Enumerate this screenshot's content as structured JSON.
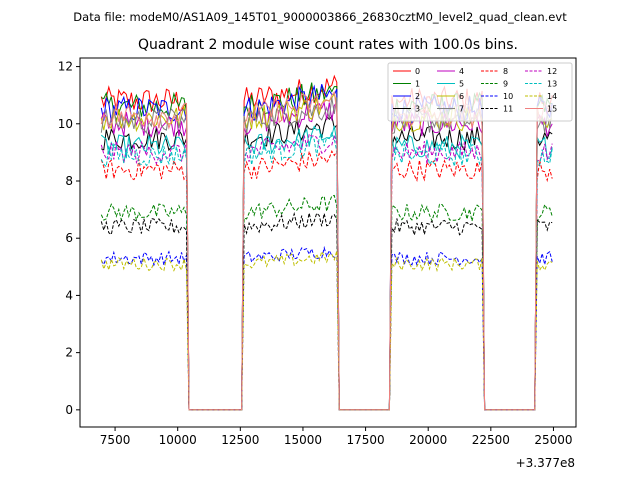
{
  "suptitle": "Data file: modeM0/AS1A09_145T01_9000003866_26830cztM0_level2_quad_clean.evt",
  "chart_data": {
    "type": "line",
    "title": "Quadrant 2 module wise count rates with 100.0s bins.",
    "xlabel": "",
    "ylabel": "",
    "x_offset_label": "+3.377e8",
    "xlim": [
      6100,
      25900
    ],
    "ylim": [
      -0.6,
      12.3
    ],
    "xticks": [
      7500,
      10000,
      12500,
      15000,
      17500,
      20000,
      22500,
      25000
    ],
    "yticks": [
      0,
      2,
      4,
      6,
      8,
      10,
      12
    ],
    "bin_width_s": 100,
    "on_segments": [
      [
        6950,
        10350
      ],
      [
        12650,
        16350
      ],
      [
        18550,
        22150
      ],
      [
        24350,
        25000
      ]
    ],
    "series": [
      {
        "name": "0",
        "color": "#ff0000",
        "dash": "solid",
        "level": 10.8
      },
      {
        "name": "1",
        "color": "#008000",
        "dash": "solid",
        "level": 10.6
      },
      {
        "name": "2",
        "color": "#0000ff",
        "dash": "solid",
        "level": 10.5
      },
      {
        "name": "3",
        "color": "#000000",
        "dash": "solid",
        "level": 9.5
      },
      {
        "name": "4",
        "color": "#bf00bf",
        "dash": "solid",
        "level": 10.0
      },
      {
        "name": "5",
        "color": "#00bfbf",
        "dash": "solid",
        "level": 9.2
      },
      {
        "name": "6",
        "color": "#bfbf00",
        "dash": "solid",
        "level": 10.2
      },
      {
        "name": "7",
        "color": "#808080",
        "dash": "solid",
        "level": 10.1
      },
      {
        "name": "8",
        "color": "#ff0000",
        "dash": "dashed",
        "level": 8.4
      },
      {
        "name": "9",
        "color": "#008000",
        "dash": "dashed",
        "level": 6.9
      },
      {
        "name": "10",
        "color": "#0000ff",
        "dash": "dashed",
        "level": 5.3
      },
      {
        "name": "11",
        "color": "#000000",
        "dash": "dashed",
        "level": 6.4
      },
      {
        "name": "12",
        "color": "#bf00bf",
        "dash": "dashed",
        "level": 9.0
      },
      {
        "name": "13",
        "color": "#00bfbf",
        "dash": "dashed",
        "level": 8.9
      },
      {
        "name": "14",
        "color": "#bfbf00",
        "dash": "dashed",
        "level": 5.1
      },
      {
        "name": "15",
        "color": "#f08080",
        "dash": "solid",
        "level": 10.3
      }
    ],
    "legend_position": "top-right",
    "legend_columns": 4
  }
}
